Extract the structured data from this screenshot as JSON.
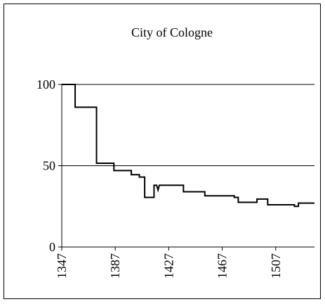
{
  "chart_data": {
    "type": "line",
    "title": "City of Cologne",
    "x": [
      1347,
      1357,
      1357,
      1373,
      1373,
      1386,
      1386,
      1399,
      1399,
      1405,
      1405,
      1409,
      1409,
      1416,
      1416,
      1418,
      1419,
      1420,
      1438,
      1438,
      1454,
      1454,
      1476,
      1476,
      1479,
      1479,
      1493,
      1493,
      1501,
      1501,
      1521,
      1521,
      1524,
      1524,
      1536
    ],
    "values": [
      100,
      100,
      86,
      86,
      51.5,
      51.5,
      47,
      47,
      44.5,
      44.5,
      43,
      43,
      30.5,
      30.5,
      38,
      38,
      35,
      38,
      38,
      34,
      34,
      31.5,
      31.5,
      30.5,
      30.5,
      27.5,
      27.5,
      29.5,
      29.5,
      26,
      26,
      25,
      25,
      27,
      27
    ],
    "color": "#000000",
    "xlim": [
      1347,
      1536
    ],
    "xticks": [
      1347,
      1387,
      1427,
      1467,
      1507
    ],
    "ylim": [
      0,
      100
    ],
    "yticks": [
      0,
      50,
      100
    ],
    "grid": true
  }
}
